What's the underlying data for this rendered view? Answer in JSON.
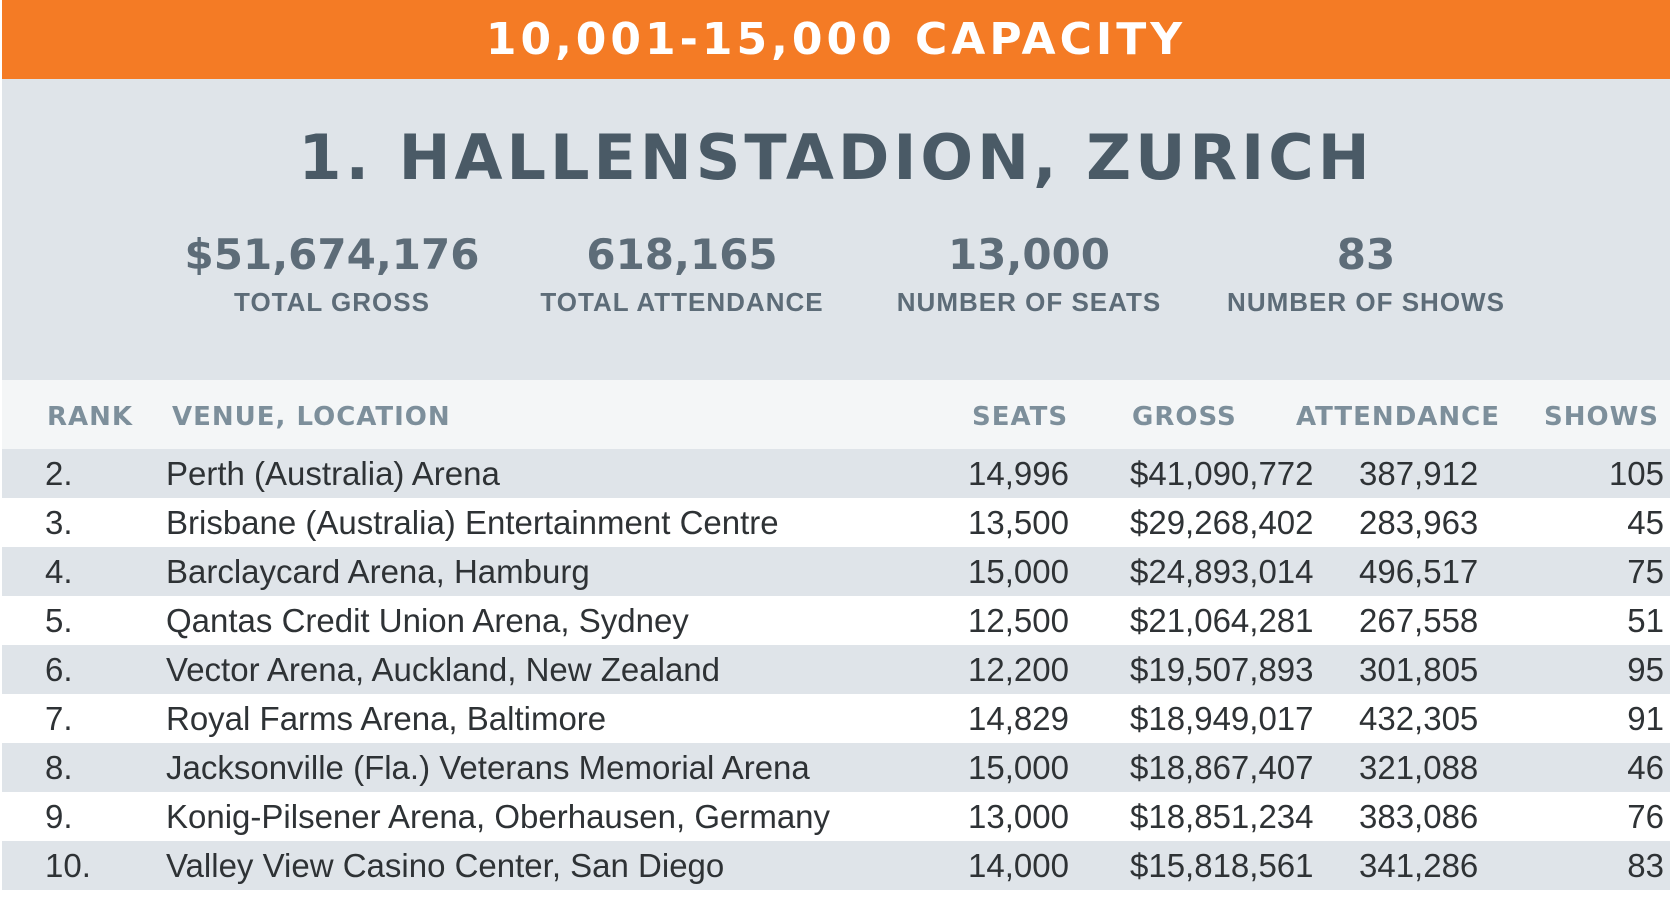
{
  "banner": {
    "title": "10,001-15,000 CAPACITY"
  },
  "feature": {
    "title": "1. HALLENSTADION, ZURICH",
    "stats": [
      {
        "value": "$51,674,176",
        "label": "TOTAL GROSS"
      },
      {
        "value": "618,165",
        "label": "TOTAL ATTENDANCE"
      },
      {
        "value": "13,000",
        "label": "NUMBER OF SEATS"
      },
      {
        "value": "83",
        "label": "NUMBER OF SHOWS"
      }
    ]
  },
  "table": {
    "headers": {
      "rank": "RANK",
      "venue": "VENUE, LOCATION",
      "seats": "SEATS",
      "gross": "GROSS",
      "attendance": "ATTENDANCE",
      "shows": "SHOWS"
    },
    "rows": [
      {
        "rank": "2.",
        "venue": "Perth (Australia) Arena",
        "seats": "14,996",
        "gross": "$41,090,772",
        "attendance": "387,912",
        "shows": "105"
      },
      {
        "rank": "3.",
        "venue": "Brisbane (Australia) Entertainment Centre",
        "seats": "13,500",
        "gross": "$29,268,402",
        "attendance": "283,963",
        "shows": "45"
      },
      {
        "rank": "4.",
        "venue": "Barclaycard Arena, Hamburg",
        "seats": "15,000",
        "gross": "$24,893,014",
        "attendance": "496,517",
        "shows": "75"
      },
      {
        "rank": "5.",
        "venue": "Qantas Credit Union Arena, Sydney",
        "seats": "12,500",
        "gross": "$21,064,281",
        "attendance": "267,558",
        "shows": "51"
      },
      {
        "rank": "6.",
        "venue": "Vector Arena, Auckland, New Zealand",
        "seats": "12,200",
        "gross": "$19,507,893",
        "attendance": "301,805",
        "shows": "95"
      },
      {
        "rank": "7.",
        "venue": "Royal Farms Arena, Baltimore",
        "seats": "14,829",
        "gross": "$18,949,017",
        "attendance": "432,305",
        "shows": "91"
      },
      {
        "rank": "8.",
        "venue": "Jacksonville (Fla.) Veterans Memorial Arena",
        "seats": "15,000",
        "gross": "$18,867,407",
        "attendance": "321,088",
        "shows": "46"
      },
      {
        "rank": "9.",
        "venue": "Konig-Pilsener Arena, Oberhausen, Germany",
        "seats": "13,000",
        "gross": "$18,851,234",
        "attendance": "383,086",
        "shows": "76"
      },
      {
        "rank": "10.",
        "venue": "Valley View Casino Center, San Diego",
        "seats": "14,000",
        "gross": "$15,818,561",
        "attendance": "341,286",
        "shows": "83"
      }
    ]
  },
  "colors": {
    "banner": "#f47b25",
    "feature_bg": "#dfe4e9",
    "stat_text": "#5d6c78",
    "header_text": "#7d8f9b",
    "row_text": "#2e3235"
  }
}
